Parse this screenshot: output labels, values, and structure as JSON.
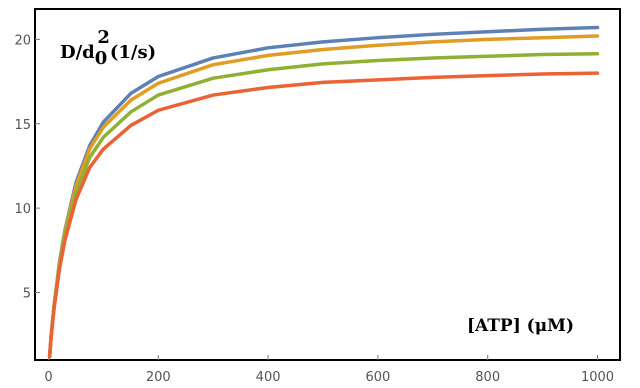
{
  "chart_data": {
    "type": "line",
    "ylabel": {
      "main": "D/d",
      "subscript": "0",
      "superscript": "2",
      "unit": "(1/s)"
    },
    "xlabel": "[ATP] (μM)",
    "xlim": [
      0,
      1000
    ],
    "ylim": [
      1,
      21.8
    ],
    "xticks": [
      0,
      200,
      400,
      600,
      800,
      1000
    ],
    "yticks": [
      5,
      10,
      15,
      20
    ],
    "grid": false,
    "series": [
      {
        "color": "#5e81b5",
        "x": [
          2,
          5,
          10,
          20,
          30,
          50,
          75,
          100,
          150,
          200,
          300,
          400,
          500,
          600,
          700,
          800,
          900,
          1000
        ],
        "values": [
          1.2,
          2.5,
          4.2,
          6.8,
          8.7,
          11.5,
          13.7,
          15.1,
          16.8,
          17.8,
          18.9,
          19.5,
          19.85,
          20.1,
          20.3,
          20.45,
          20.6,
          20.7
        ]
      },
      {
        "color": "#e19c24",
        "x": [
          2,
          5,
          10,
          20,
          30,
          50,
          75,
          100,
          150,
          200,
          300,
          400,
          500,
          600,
          700,
          800,
          900,
          1000
        ],
        "values": [
          1.2,
          2.5,
          4.2,
          6.7,
          8.6,
          11.3,
          13.5,
          14.8,
          16.4,
          17.4,
          18.5,
          19.05,
          19.4,
          19.65,
          19.85,
          20.0,
          20.1,
          20.2
        ]
      },
      {
        "color": "#8fb032",
        "x": [
          2,
          5,
          10,
          20,
          30,
          50,
          75,
          100,
          150,
          200,
          300,
          400,
          500,
          600,
          700,
          800,
          900,
          1000
        ],
        "values": [
          1.2,
          2.5,
          4.1,
          6.6,
          8.4,
          10.9,
          13.0,
          14.2,
          15.7,
          16.7,
          17.7,
          18.2,
          18.55,
          18.75,
          18.9,
          19.0,
          19.1,
          19.15
        ]
      },
      {
        "color": "#eb6235",
        "x": [
          2,
          5,
          10,
          20,
          30,
          50,
          75,
          100,
          150,
          200,
          300,
          400,
          500,
          600,
          700,
          800,
          900,
          1000
        ],
        "values": [
          1.2,
          2.4,
          4.0,
          6.4,
          8.1,
          10.5,
          12.4,
          13.5,
          14.9,
          15.8,
          16.7,
          17.15,
          17.45,
          17.6,
          17.75,
          17.85,
          17.95,
          18.0
        ]
      }
    ]
  }
}
